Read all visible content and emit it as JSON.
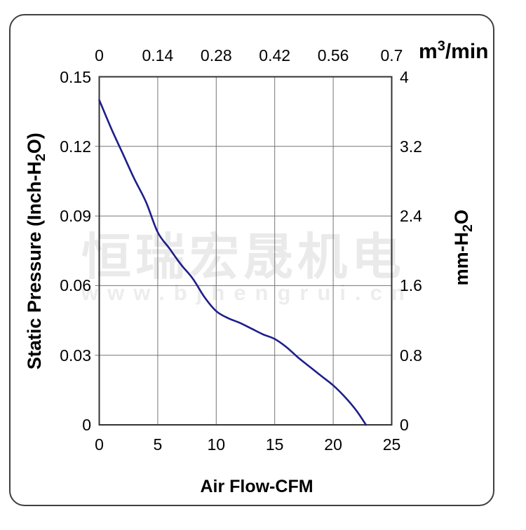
{
  "watermark": {
    "cjk": "恒瑞宏晟机电",
    "url": "www.bjhengrui.cn",
    "color_cjk": "#eaeaea",
    "color_url": "#ededed"
  },
  "chart_data": {
    "type": "line",
    "title": "",
    "grid": true,
    "legend": null,
    "x_bottom": {
      "label": "Air Flow-CFM",
      "ticks": [
        "0",
        "5",
        "10",
        "15",
        "20",
        "25"
      ],
      "range": [
        0,
        25
      ]
    },
    "x_top": {
      "unit_pre": "m",
      "unit_sup": "3",
      "unit_post": "/min",
      "ticks": [
        "0",
        "0.14",
        "0.28",
        "0.42",
        "0.56",
        "0.7"
      ],
      "range": [
        0,
        0.7
      ]
    },
    "y_left": {
      "label_pre": "Static Pressure (Inch-H",
      "label_sub": "2",
      "label_post": "O)",
      "ticks": [
        "0.15",
        "0.12",
        "0.09",
        "0.06",
        "0.03",
        "0"
      ],
      "range": [
        0,
        0.15
      ]
    },
    "y_right": {
      "label_pre": "mm-H",
      "label_sub": "2",
      "label_post": "O",
      "ticks": [
        "4",
        "3.2",
        "2.4",
        "1.6",
        "0.8",
        "0"
      ],
      "range": [
        0,
        4
      ]
    },
    "series": [
      {
        "name": "static-pressure-vs-airflow",
        "x_cfm": [
          0,
          1,
          2,
          3,
          4,
          5,
          6,
          7,
          8,
          9,
          10,
          11,
          12,
          13,
          14,
          15,
          16,
          17,
          18,
          19,
          20,
          21,
          22,
          22.8
        ],
        "y_inch_h2o": [
          0.14,
          0.128,
          0.117,
          0.106,
          0.096,
          0.083,
          0.076,
          0.069,
          0.063,
          0.055,
          0.049,
          0.046,
          0.044,
          0.0415,
          0.039,
          0.037,
          0.0335,
          0.029,
          0.025,
          0.021,
          0.017,
          0.012,
          0.006,
          0.0
        ]
      }
    ],
    "colors": {
      "curve": "#1e1e8c",
      "grid": "#757575",
      "plot_border": "#333333",
      "frame_border": "#3f3f3f",
      "text": "#000000"
    }
  }
}
